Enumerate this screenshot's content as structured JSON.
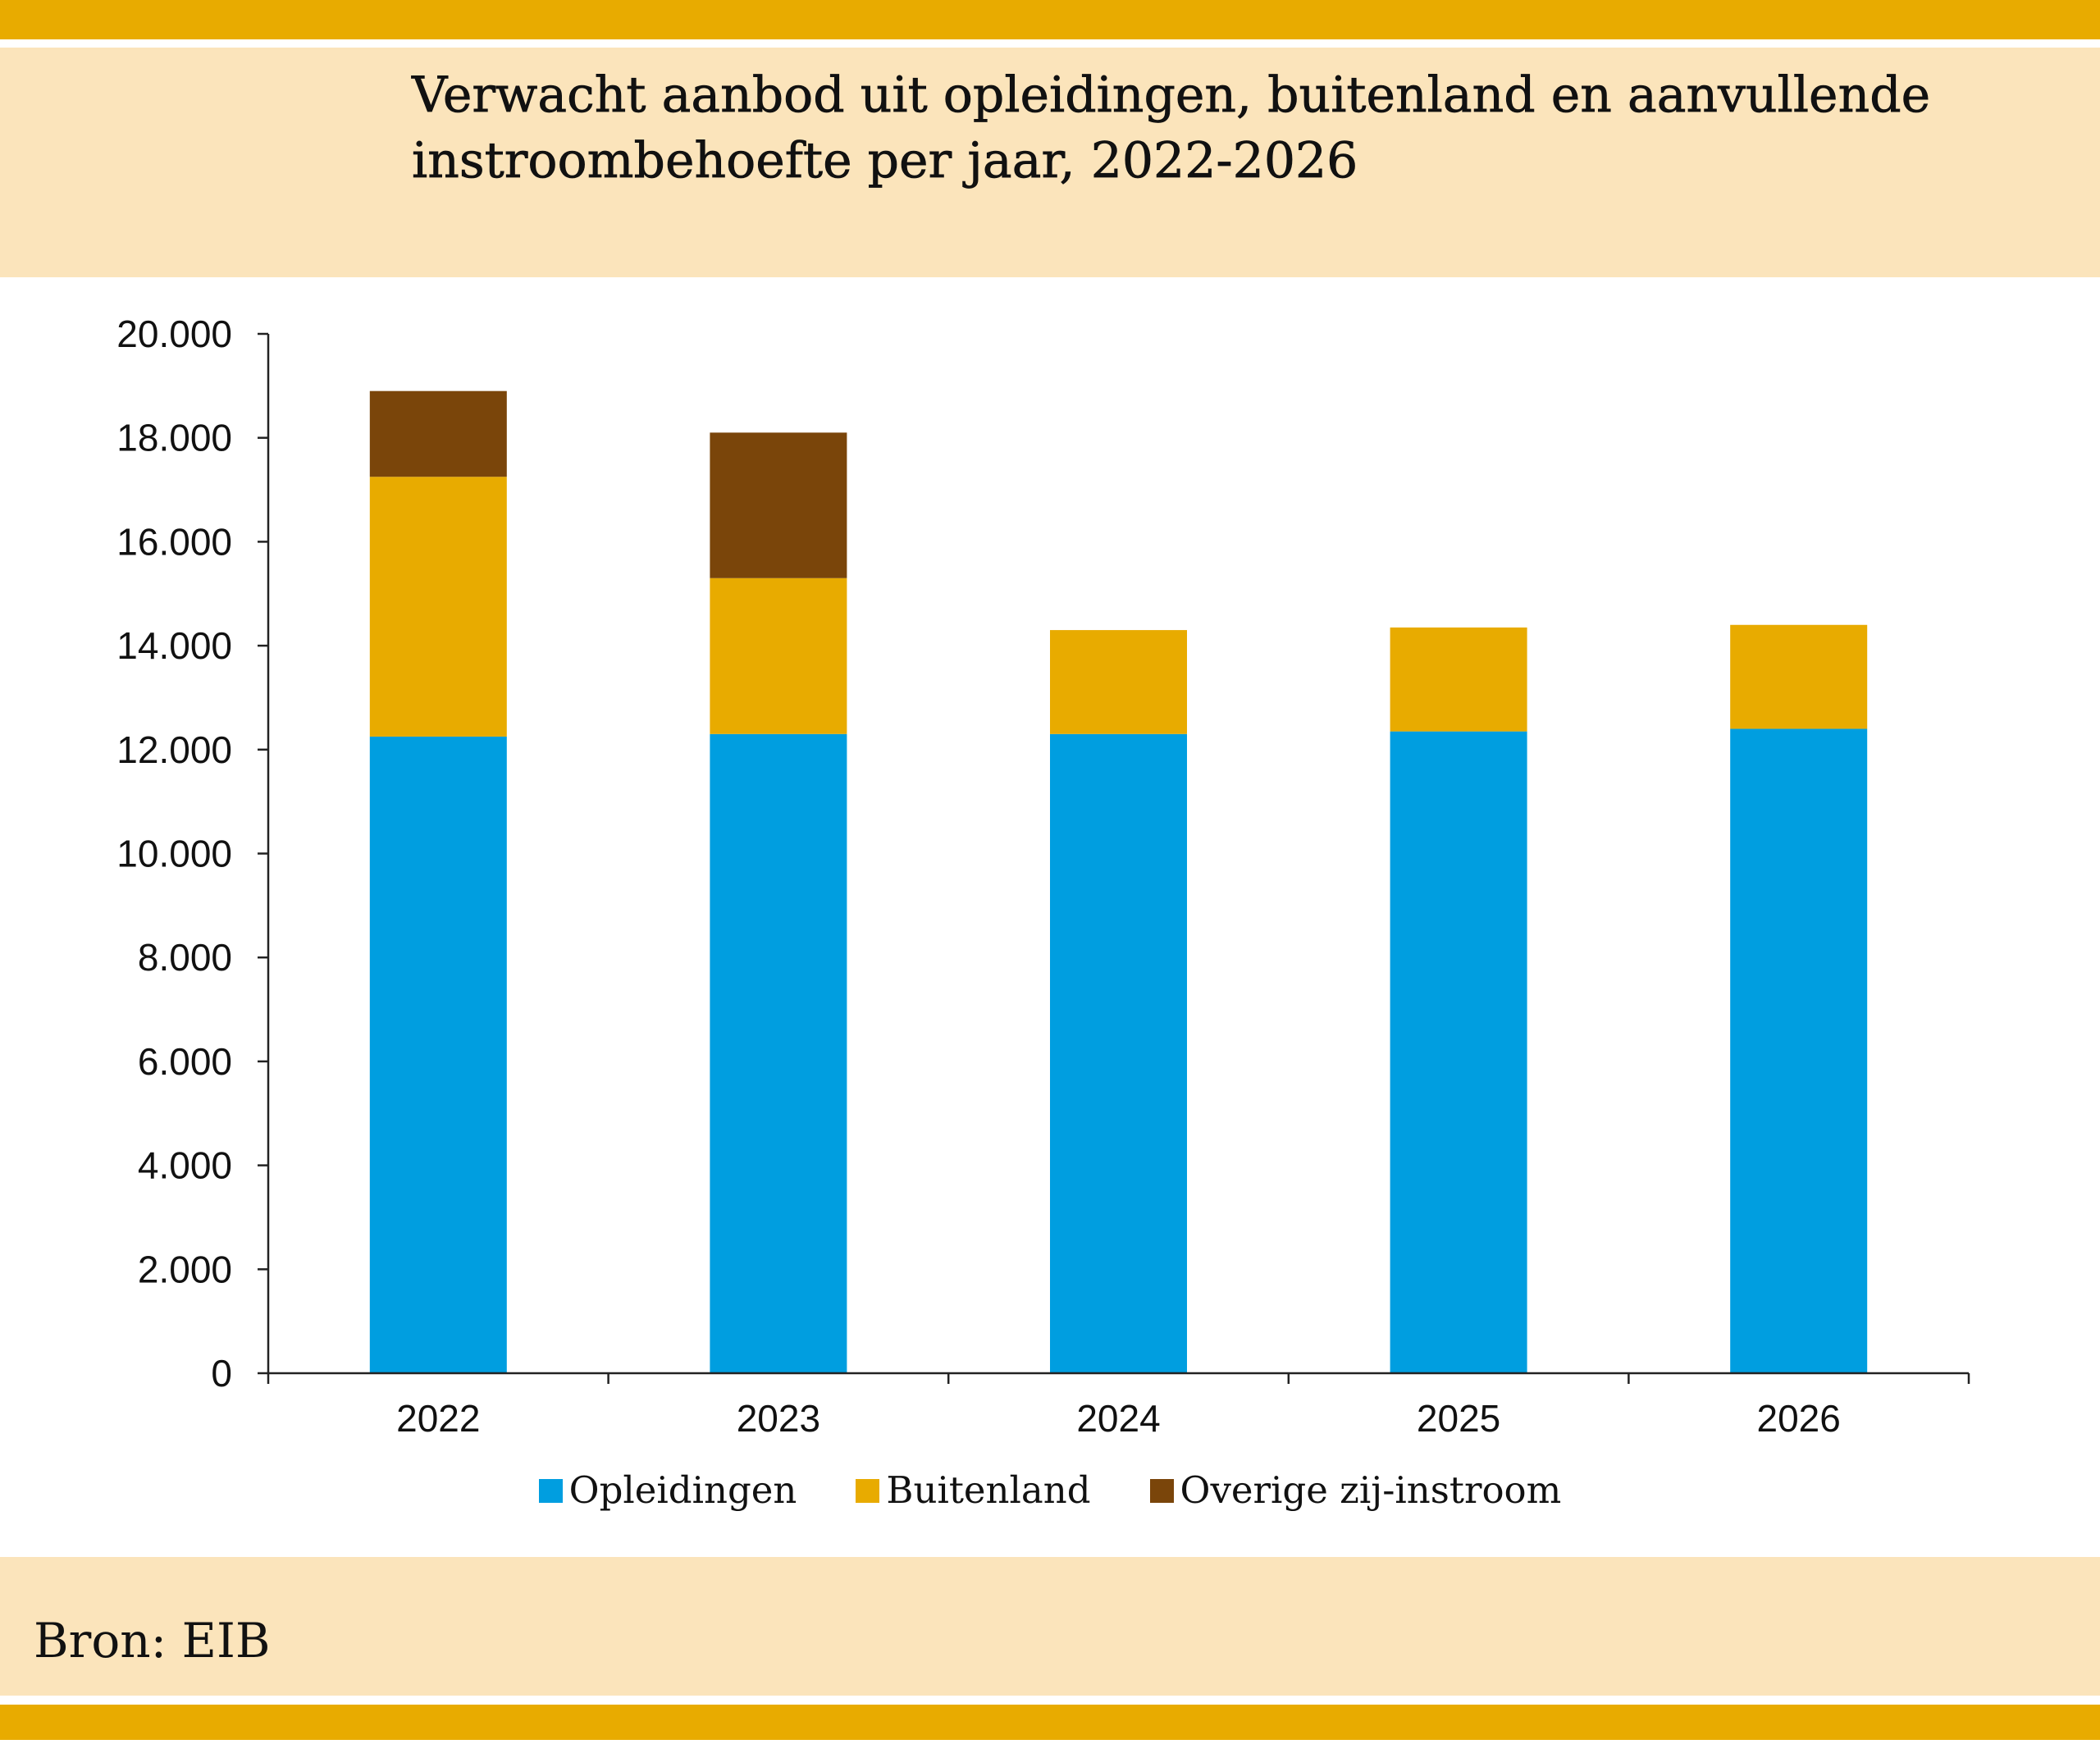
{
  "theme": {
    "band_color": "#E8AB00",
    "panel_color": "#FBE4BB"
  },
  "chart_data": {
    "type": "bar",
    "stacked": true,
    "title": "Verwacht aanbod uit opleidingen, buitenland en aanvullende instroombehoefte per jaar, 2022-2026",
    "xlabel": "",
    "ylabel": "",
    "categories": [
      "2022",
      "2023",
      "2024",
      "2025",
      "2026"
    ],
    "series": [
      {
        "name": "Opleidingen",
        "color": "#009EE0",
        "values": [
          12250,
          12300,
          12300,
          12350,
          12400
        ]
      },
      {
        "name": "Buitenland",
        "color": "#E8AB00",
        "values": [
          5000,
          3000,
          2000,
          2000,
          2000
        ]
      },
      {
        "name": "Overige zij-instroom",
        "color": "#7A450A",
        "values": [
          1650,
          2800,
          0,
          0,
          0
        ]
      }
    ],
    "ylim": [
      0,
      20000
    ],
    "y_ticks": [
      0,
      2000,
      4000,
      6000,
      8000,
      10000,
      12000,
      14000,
      16000,
      18000,
      20000
    ],
    "y_tick_labels": [
      "0",
      "2.000",
      "4.000",
      "6.000",
      "8.000",
      "10.000",
      "12.000",
      "14.000",
      "16.000",
      "18.000",
      "20.000"
    ],
    "grid": false,
    "legend": "bottom"
  },
  "source": "Bron: EIB"
}
